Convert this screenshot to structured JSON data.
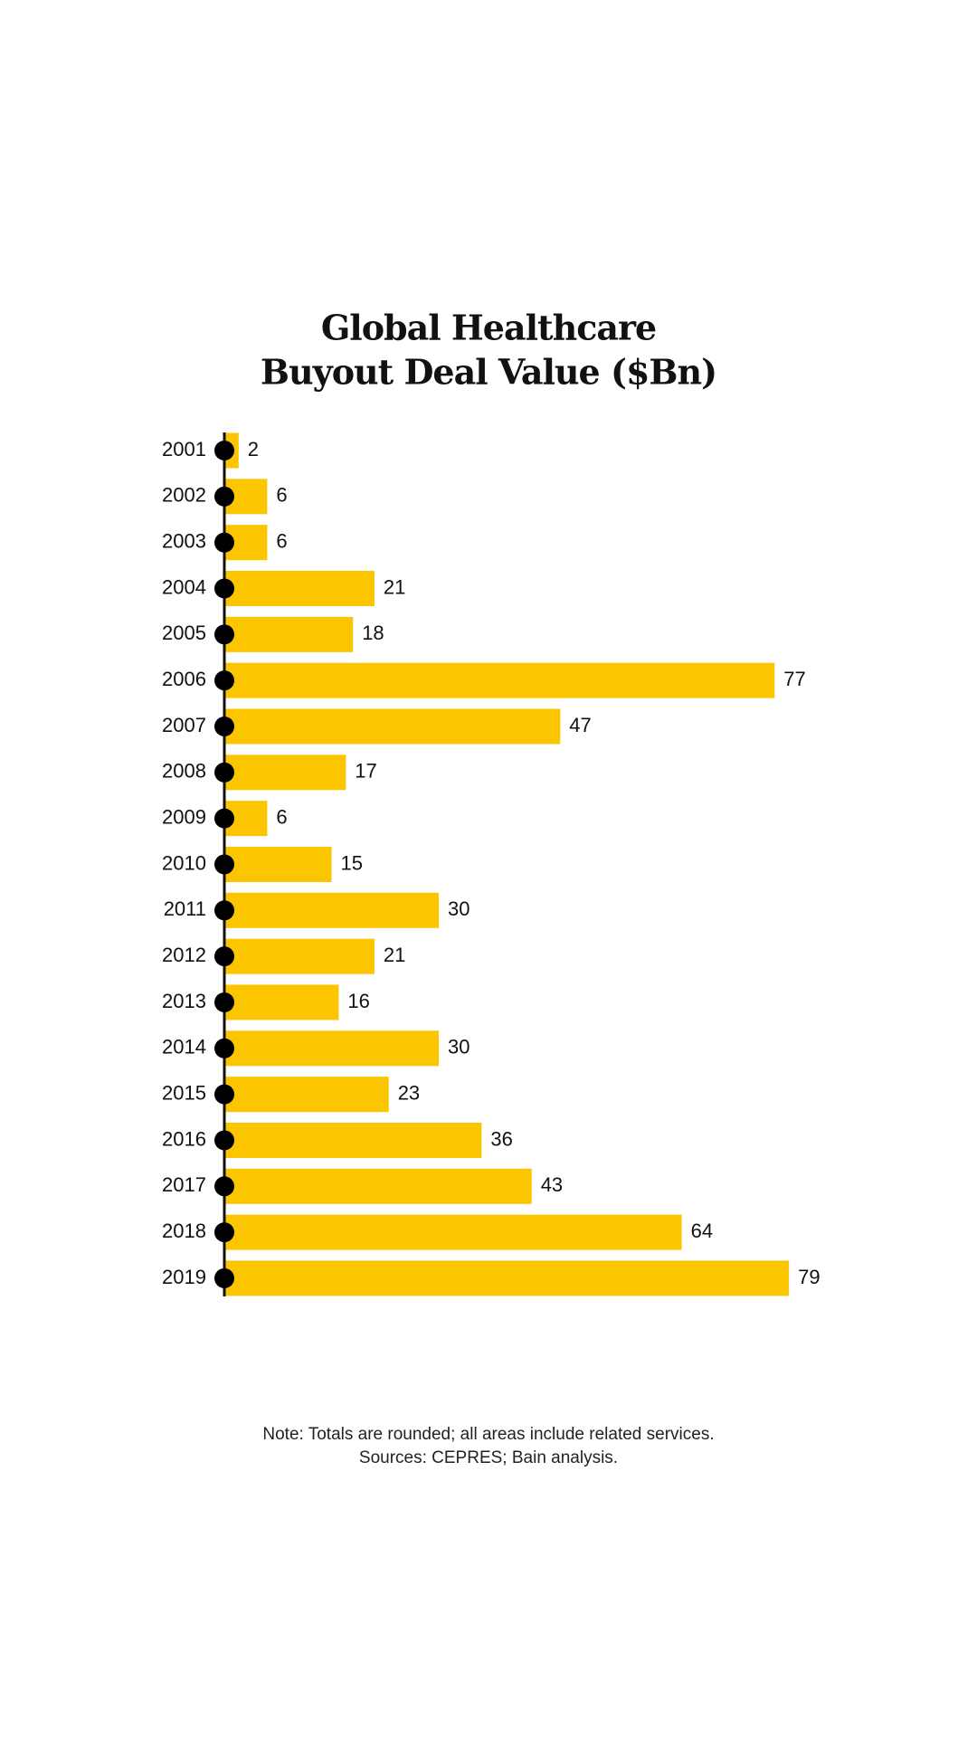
{
  "chart_data": {
    "type": "bar",
    "orientation": "horizontal",
    "title": [
      "Global Healthcare",
      "Buyout Deal Value ($Bn)"
    ],
    "categories": [
      "2001",
      "2002",
      "2003",
      "2004",
      "2005",
      "2006",
      "2007",
      "2008",
      "2009",
      "2010",
      "2011",
      "2012",
      "2013",
      "2014",
      "2015",
      "2016",
      "2017",
      "2018",
      "2019"
    ],
    "values": [
      2,
      6,
      6,
      21,
      18,
      77,
      47,
      17,
      6,
      15,
      30,
      21,
      16,
      30,
      23,
      36,
      43,
      64,
      79
    ],
    "color": "#fbc500",
    "notes": [
      "Note: Totals are rounded; all areas include related services.",
      "Sources: CEPRES; Bain analysis."
    ]
  }
}
